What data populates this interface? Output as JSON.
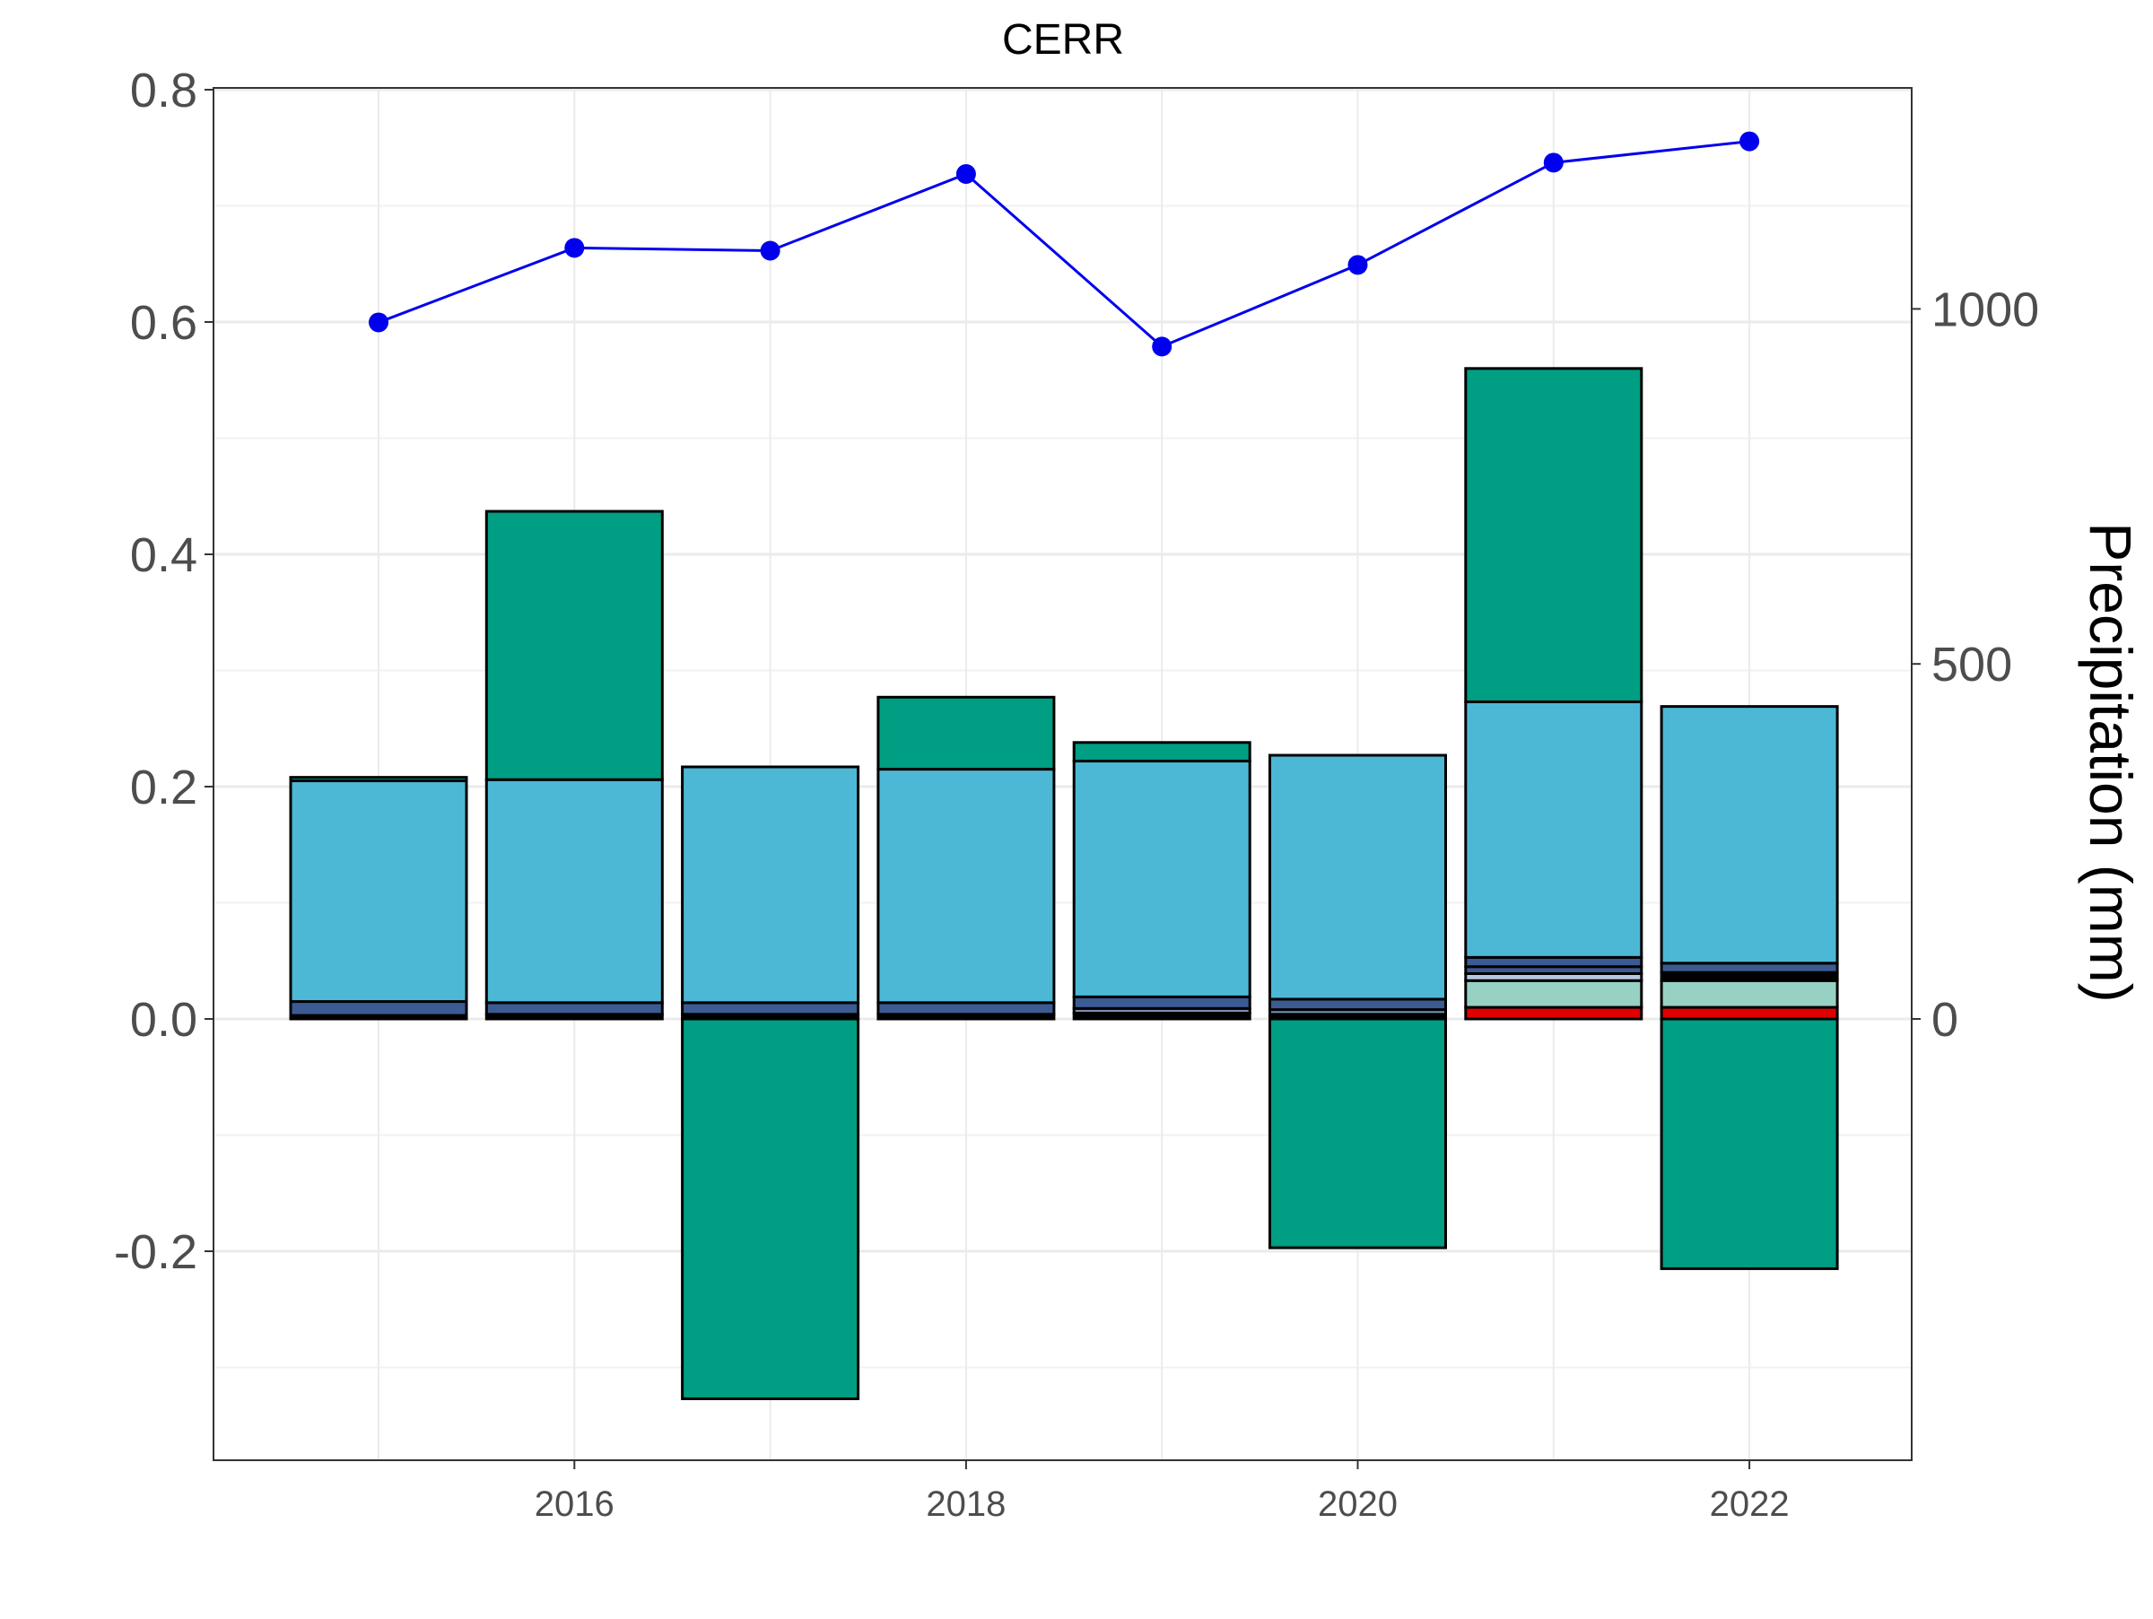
{
  "chart_data": {
    "type": "bar",
    "title": "CERR",
    "xlabel": "",
    "ylabel": "",
    "y2label": "Precipitation (mm)",
    "x": [
      2015,
      2016,
      2017,
      2018,
      2019,
      2020,
      2021,
      2022
    ],
    "xticks": [
      "2016",
      "2018",
      "2020",
      "2022"
    ],
    "yticks": [
      "0.8",
      "0.6",
      "0.4",
      "0.2",
      "0.0",
      "-0.2"
    ],
    "y2ticks": [
      "1000",
      "500",
      "0"
    ],
    "ylim": [
      -0.38,
      0.8
    ],
    "y2lim": [
      -456,
      1152
    ],
    "grid": true,
    "legend": "none",
    "bar_segments": [
      {
        "x": 2015,
        "segments": [
          {
            "from": 0.0,
            "to": 0.003,
            "color": "#000000"
          },
          {
            "from": 0.003,
            "to": 0.015,
            "color": "#3b5b92"
          },
          {
            "from": 0.015,
            "to": 0.205,
            "color": "#4db8d6"
          },
          {
            "from": 0.205,
            "to": 0.208,
            "color": "#009e82"
          }
        ]
      },
      {
        "x": 2016,
        "segments": [
          {
            "from": 0.0,
            "to": 0.004,
            "color": "#000000"
          },
          {
            "from": 0.004,
            "to": 0.014,
            "color": "#3b5b92"
          },
          {
            "from": 0.014,
            "to": 0.206,
            "color": "#4db8d6"
          },
          {
            "from": 0.206,
            "to": 0.437,
            "color": "#009e82"
          }
        ]
      },
      {
        "x": 2017,
        "segments": [
          {
            "from": 0.0,
            "to": 0.004,
            "color": "#000000"
          },
          {
            "from": 0.004,
            "to": 0.014,
            "color": "#3b5b92"
          },
          {
            "from": 0.014,
            "to": 0.217,
            "color": "#4db8d6"
          },
          {
            "from": -0.327,
            "to": 0.0,
            "color": "#009e82"
          }
        ]
      },
      {
        "x": 2018,
        "segments": [
          {
            "from": 0.0,
            "to": 0.004,
            "color": "#000000"
          },
          {
            "from": 0.004,
            "to": 0.014,
            "color": "#3b5b92"
          },
          {
            "from": 0.014,
            "to": 0.215,
            "color": "#4db8d6"
          },
          {
            "from": 0.215,
            "to": 0.277,
            "color": "#009e82"
          }
        ]
      },
      {
        "x": 2019,
        "segments": [
          {
            "from": 0.0,
            "to": 0.005,
            "color": "#000000"
          },
          {
            "from": 0.005,
            "to": 0.009,
            "color": "#7b8fb5"
          },
          {
            "from": 0.009,
            "to": 0.019,
            "color": "#3b5b92"
          },
          {
            "from": 0.019,
            "to": 0.222,
            "color": "#4db8d6"
          },
          {
            "from": 0.222,
            "to": 0.238,
            "color": "#009e82"
          }
        ]
      },
      {
        "x": 2020,
        "segments": [
          {
            "from": 0.0,
            "to": 0.004,
            "color": "#000000"
          },
          {
            "from": 0.004,
            "to": 0.008,
            "color": "#7b8fb5"
          },
          {
            "from": 0.008,
            "to": 0.017,
            "color": "#3b5b92"
          },
          {
            "from": 0.017,
            "to": 0.227,
            "color": "#4db8d6"
          },
          {
            "from": -0.197,
            "to": 0.0,
            "color": "#009e82"
          }
        ]
      },
      {
        "x": 2021,
        "segments": [
          {
            "from": 0.0,
            "to": 0.01,
            "color": "#e00000"
          },
          {
            "from": 0.01,
            "to": 0.033,
            "color": "#97d1c4"
          },
          {
            "from": 0.033,
            "to": 0.039,
            "color": "#b8c8e0"
          },
          {
            "from": 0.039,
            "to": 0.045,
            "color": "#3b5b92"
          },
          {
            "from": 0.045,
            "to": 0.053,
            "color": "#3b5b92"
          },
          {
            "from": 0.053,
            "to": 0.273,
            "color": "#4db8d6"
          },
          {
            "from": 0.273,
            "to": 0.56,
            "color": "#009e82"
          }
        ]
      },
      {
        "x": 2022,
        "segments": [
          {
            "from": 0.0,
            "to": 0.01,
            "color": "#e00000"
          },
          {
            "from": 0.01,
            "to": 0.033,
            "color": "#97d1c4"
          },
          {
            "from": 0.033,
            "to": 0.04,
            "color": "#000000"
          },
          {
            "from": 0.04,
            "to": 0.048,
            "color": "#3b5b92"
          },
          {
            "from": 0.048,
            "to": 0.269,
            "color": "#4db8d6"
          },
          {
            "from": -0.215,
            "to": 0.0,
            "color": "#009e82"
          }
        ]
      }
    ],
    "precipitation_series": {
      "color": "#0000ee",
      "x": [
        2015,
        2016,
        2017,
        2018,
        2019,
        2020,
        2021,
        2022
      ],
      "values": [
        981,
        1086,
        1082,
        1190,
        947,
        1062,
        1206,
        1236
      ]
    }
  }
}
